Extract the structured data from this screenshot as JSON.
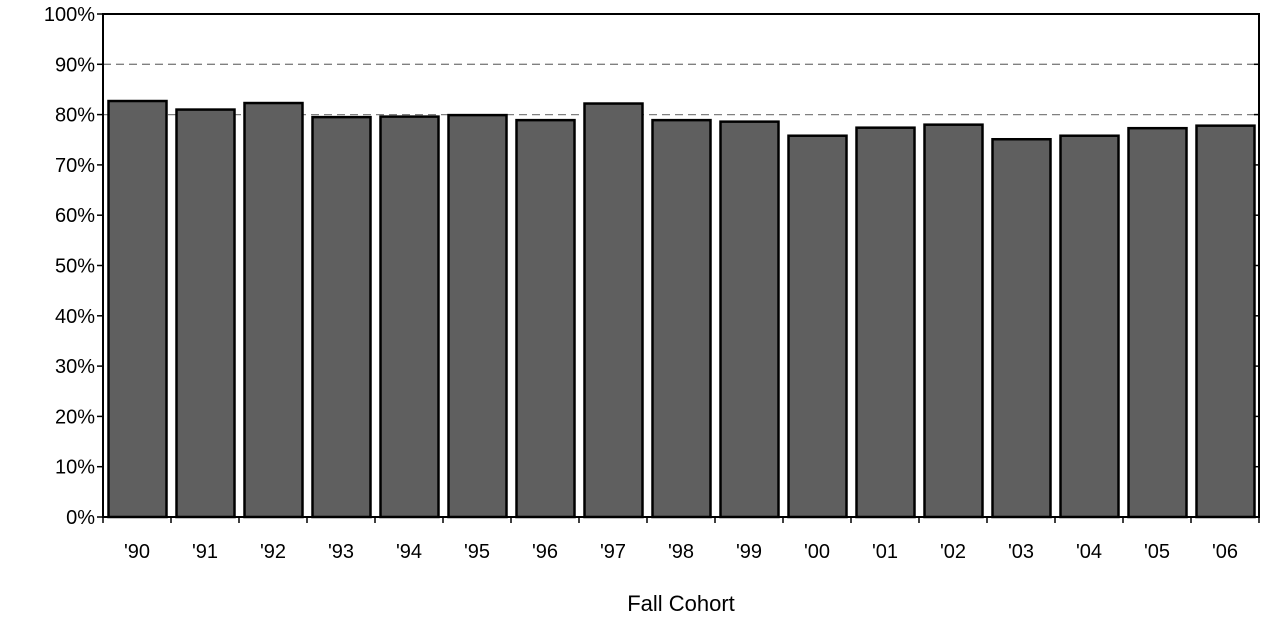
{
  "chart_data": {
    "type": "bar",
    "title": "",
    "xlabel": "Fall Cohort",
    "ylabel": "",
    "categories": [
      "'90",
      "'91",
      "'92",
      "'93",
      "'94",
      "'95",
      "'96",
      "'97",
      "'98",
      "'99",
      "'00",
      "'01",
      "'02",
      "'03",
      "'04",
      "'05",
      "'06"
    ],
    "values": [
      0.827,
      0.81,
      0.823,
      0.795,
      0.796,
      0.799,
      0.789,
      0.822,
      0.789,
      0.786,
      0.758,
      0.774,
      0.78,
      0.751,
      0.758,
      0.773,
      0.778
    ],
    "ylim": [
      0,
      1
    ],
    "yticks": [
      0,
      0.1,
      0.2,
      0.3,
      0.4,
      0.5,
      0.6,
      0.7,
      0.8,
      0.9,
      1.0
    ],
    "ytick_labels": [
      "0%",
      "10%",
      "20%",
      "30%",
      "40%",
      "50%",
      "60%",
      "70%",
      "80%",
      "90%",
      "100%"
    ],
    "gridlines": [
      0.8,
      0.9
    ],
    "grid_style": "dashed",
    "legend": "none",
    "colors": {
      "bar_fill": "#5f5f5f",
      "bar_stroke": "#000000",
      "grid": "#808080",
      "axis": "#000000"
    }
  }
}
